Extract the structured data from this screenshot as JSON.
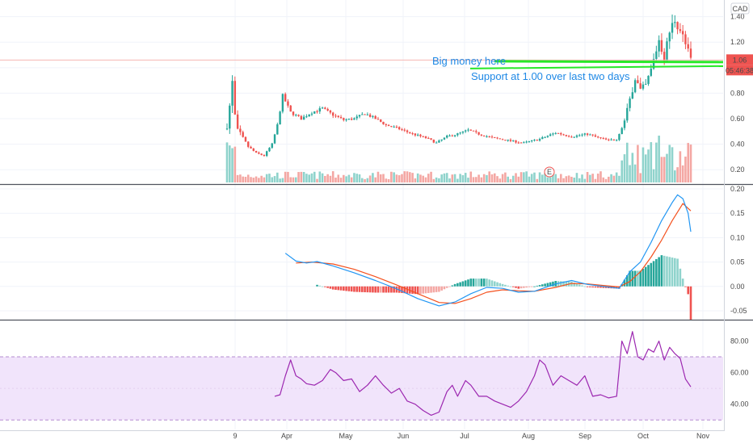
{
  "currency": "CAD",
  "badges": {
    "price": "1.06",
    "countdown": "05:46:38",
    "event": "E"
  },
  "annotations": [
    {
      "text": "Big money here",
      "level": 1.05
    },
    {
      "text": "Support at 1.00 over last two days",
      "level": 1.0
    }
  ],
  "colors": {
    "up": "#26a69a",
    "down": "#ef5350",
    "up_volume": "#8fd3cc",
    "down_volume": "#f4a7a3",
    "macd_line": "#2196f3",
    "signal_line": "#f4511e",
    "rsi_line": "#9c27b0",
    "rsi_band": "#f1e4fb",
    "annotation_line": "#27e827",
    "annotation_text": "#1e88e5",
    "hline": "#f6b6b3",
    "price_badge": "#ef5350"
  },
  "chart_data": [
    {
      "type": "candlestick",
      "panel": "price",
      "currency": "CAD",
      "ylim": [
        0.1,
        1.48
      ],
      "y_ticks": [
        "1.40",
        "1.20",
        "1.00",
        "0.80",
        "0.60",
        "0.40",
        "0.20"
      ],
      "x_months": [
        "9",
        "Apr",
        "May",
        "Jun",
        "Jul",
        "Aug",
        "Sep",
        "Oct",
        "Nov"
      ],
      "key_points": [
        {
          "t": 0,
          "v": 0.55
        },
        {
          "t": 1,
          "v": 0.7
        },
        {
          "t": 2,
          "v": 0.88
        },
        {
          "t": 3,
          "v": 0.62
        },
        {
          "t": 4,
          "v": 0.5
        },
        {
          "t": 6,
          "v": 0.45
        },
        {
          "t": 8,
          "v": 0.38
        },
        {
          "t": 11,
          "v": 0.33
        },
        {
          "t": 14,
          "v": 0.31
        },
        {
          "t": 17,
          "v": 0.4
        },
        {
          "t": 19,
          "v": 0.55
        },
        {
          "t": 21,
          "v": 0.78
        },
        {
          "t": 24,
          "v": 0.65
        },
        {
          "t": 28,
          "v": 0.6
        },
        {
          "t": 32,
          "v": 0.65
        },
        {
          "t": 36,
          "v": 0.68
        },
        {
          "t": 40,
          "v": 0.63
        },
        {
          "t": 44,
          "v": 0.59
        },
        {
          "t": 48,
          "v": 0.6
        },
        {
          "t": 52,
          "v": 0.64
        },
        {
          "t": 56,
          "v": 0.6
        },
        {
          "t": 60,
          "v": 0.55
        },
        {
          "t": 65,
          "v": 0.52
        },
        {
          "t": 70,
          "v": 0.48
        },
        {
          "t": 75,
          "v": 0.45
        },
        {
          "t": 79,
          "v": 0.41
        },
        {
          "t": 83,
          "v": 0.46
        },
        {
          "t": 87,
          "v": 0.48
        },
        {
          "t": 91,
          "v": 0.51
        },
        {
          "t": 95,
          "v": 0.48
        },
        {
          "t": 100,
          "v": 0.45
        },
        {
          "t": 106,
          "v": 0.43
        },
        {
          "t": 112,
          "v": 0.41
        },
        {
          "t": 118,
          "v": 0.44
        },
        {
          "t": 124,
          "v": 0.49
        },
        {
          "t": 130,
          "v": 0.46
        },
        {
          "t": 136,
          "v": 0.48
        },
        {
          "t": 140,
          "v": 0.45
        },
        {
          "t": 144,
          "v": 0.43
        },
        {
          "t": 147,
          "v": 0.44
        },
        {
          "t": 150,
          "v": 0.58
        },
        {
          "t": 152,
          "v": 0.75
        },
        {
          "t": 154,
          "v": 0.92
        },
        {
          "t": 156,
          "v": 0.82
        },
        {
          "t": 158,
          "v": 0.86
        },
        {
          "t": 160,
          "v": 0.98
        },
        {
          "t": 163,
          "v": 1.22
        },
        {
          "t": 165,
          "v": 1.08
        },
        {
          "t": 167,
          "v": 1.28
        },
        {
          "t": 169,
          "v": 1.38
        },
        {
          "t": 171,
          "v": 1.3
        },
        {
          "t": 173,
          "v": 1.18
        },
        {
          "t": 175,
          "v": 1.06
        }
      ],
      "candle_count": 176
    },
    {
      "type": "bar",
      "panel": "volume",
      "note": "volume bars drawn from candle direction"
    },
    {
      "type": "line",
      "panel": "macd",
      "ylim": [
        -0.065,
        0.205
      ],
      "y_ticks": [
        "0.20",
        "0.15",
        "0.10",
        "0.05",
        "0.00",
        "-0.05"
      ],
      "series": [
        {
          "role": "macd",
          "points": [
            {
              "t": 22,
              "v": 0.068
            },
            {
              "t": 26,
              "v": 0.052
            },
            {
              "t": 30,
              "v": 0.048
            },
            {
              "t": 34,
              "v": 0.051
            },
            {
              "t": 40,
              "v": 0.042
            },
            {
              "t": 48,
              "v": 0.028
            },
            {
              "t": 56,
              "v": 0.012
            },
            {
              "t": 64,
              "v": -0.005
            },
            {
              "t": 72,
              "v": -0.025
            },
            {
              "t": 80,
              "v": -0.04
            },
            {
              "t": 86,
              "v": -0.032
            },
            {
              "t": 92,
              "v": -0.015
            },
            {
              "t": 98,
              "v": -0.002
            },
            {
              "t": 104,
              "v": -0.004
            },
            {
              "t": 110,
              "v": -0.012
            },
            {
              "t": 116,
              "v": -0.01
            },
            {
              "t": 124,
              "v": 0.005
            },
            {
              "t": 130,
              "v": 0.012
            },
            {
              "t": 136,
              "v": 0.004
            },
            {
              "t": 142,
              "v": 0.0
            },
            {
              "t": 148,
              "v": -0.004
            },
            {
              "t": 152,
              "v": 0.03
            },
            {
              "t": 156,
              "v": 0.05
            },
            {
              "t": 160,
              "v": 0.09
            },
            {
              "t": 164,
              "v": 0.135
            },
            {
              "t": 168,
              "v": 0.172
            },
            {
              "t": 170,
              "v": 0.188
            },
            {
              "t": 172,
              "v": 0.18
            },
            {
              "t": 174,
              "v": 0.15
            },
            {
              "t": 175,
              "v": 0.112
            }
          ]
        },
        {
          "role": "signal",
          "points": [
            {
              "t": 26,
              "v": 0.048
            },
            {
              "t": 32,
              "v": 0.05
            },
            {
              "t": 40,
              "v": 0.046
            },
            {
              "t": 48,
              "v": 0.035
            },
            {
              "t": 56,
              "v": 0.02
            },
            {
              "t": 64,
              "v": 0.003
            },
            {
              "t": 72,
              "v": -0.015
            },
            {
              "t": 80,
              "v": -0.033
            },
            {
              "t": 86,
              "v": -0.035
            },
            {
              "t": 92,
              "v": -0.025
            },
            {
              "t": 98,
              "v": -0.012
            },
            {
              "t": 104,
              "v": -0.007
            },
            {
              "t": 110,
              "v": -0.009
            },
            {
              "t": 116,
              "v": -0.01
            },
            {
              "t": 124,
              "v": -0.002
            },
            {
              "t": 130,
              "v": 0.006
            },
            {
              "t": 136,
              "v": 0.005
            },
            {
              "t": 142,
              "v": 0.002
            },
            {
              "t": 148,
              "v": -0.001
            },
            {
              "t": 152,
              "v": 0.01
            },
            {
              "t": 156,
              "v": 0.03
            },
            {
              "t": 160,
              "v": 0.06
            },
            {
              "t": 164,
              "v": 0.095
            },
            {
              "t": 168,
              "v": 0.135
            },
            {
              "t": 172,
              "v": 0.17
            },
            {
              "t": 175,
              "v": 0.155
            }
          ]
        }
      ]
    },
    {
      "type": "line",
      "panel": "rsi",
      "ylim": [
        24,
        92
      ],
      "y_ticks": [
        "80.00",
        "60.00",
        "40.00"
      ],
      "band": [
        30,
        70
      ],
      "points": [
        {
          "t": 18,
          "v": 45
        },
        {
          "t": 20,
          "v": 46
        },
        {
          "t": 22,
          "v": 58
        },
        {
          "t": 24,
          "v": 68
        },
        {
          "t": 26,
          "v": 58
        },
        {
          "t": 28,
          "v": 56
        },
        {
          "t": 30,
          "v": 53
        },
        {
          "t": 33,
          "v": 52
        },
        {
          "t": 36,
          "v": 55
        },
        {
          "t": 39,
          "v": 62
        },
        {
          "t": 41,
          "v": 60
        },
        {
          "t": 44,
          "v": 55
        },
        {
          "t": 47,
          "v": 56
        },
        {
          "t": 50,
          "v": 48
        },
        {
          "t": 53,
          "v": 52
        },
        {
          "t": 56,
          "v": 58
        },
        {
          "t": 59,
          "v": 52
        },
        {
          "t": 62,
          "v": 47
        },
        {
          "t": 65,
          "v": 50
        },
        {
          "t": 68,
          "v": 42
        },
        {
          "t": 71,
          "v": 40
        },
        {
          "t": 74,
          "v": 36
        },
        {
          "t": 77,
          "v": 33
        },
        {
          "t": 80,
          "v": 35
        },
        {
          "t": 83,
          "v": 48
        },
        {
          "t": 85,
          "v": 52
        },
        {
          "t": 87,
          "v": 45
        },
        {
          "t": 90,
          "v": 55
        },
        {
          "t": 92,
          "v": 52
        },
        {
          "t": 95,
          "v": 45
        },
        {
          "t": 98,
          "v": 45
        },
        {
          "t": 101,
          "v": 42
        },
        {
          "t": 104,
          "v": 40
        },
        {
          "t": 107,
          "v": 38
        },
        {
          "t": 110,
          "v": 42
        },
        {
          "t": 113,
          "v": 48
        },
        {
          "t": 116,
          "v": 58
        },
        {
          "t": 118,
          "v": 68
        },
        {
          "t": 120,
          "v": 65
        },
        {
          "t": 123,
          "v": 52
        },
        {
          "t": 126,
          "v": 58
        },
        {
          "t": 129,
          "v": 55
        },
        {
          "t": 132,
          "v": 52
        },
        {
          "t": 135,
          "v": 58
        },
        {
          "t": 138,
          "v": 45
        },
        {
          "t": 141,
          "v": 46
        },
        {
          "t": 144,
          "v": 44
        },
        {
          "t": 147,
          "v": 45
        },
        {
          "t": 149,
          "v": 80
        },
        {
          "t": 151,
          "v": 72
        },
        {
          "t": 153,
          "v": 86
        },
        {
          "t": 155,
          "v": 70
        },
        {
          "t": 157,
          "v": 68
        },
        {
          "t": 159,
          "v": 75
        },
        {
          "t": 161,
          "v": 73
        },
        {
          "t": 163,
          "v": 80
        },
        {
          "t": 165,
          "v": 68
        },
        {
          "t": 167,
          "v": 76
        },
        {
          "t": 169,
          "v": 72
        },
        {
          "t": 171,
          "v": 69
        },
        {
          "t": 173,
          "v": 56
        },
        {
          "t": 175,
          "v": 51
        }
      ]
    }
  ]
}
